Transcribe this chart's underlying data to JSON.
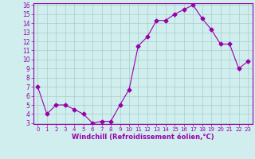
{
  "x": [
    0,
    1,
    2,
    3,
    4,
    5,
    6,
    7,
    8,
    9,
    10,
    11,
    12,
    13,
    14,
    15,
    16,
    17,
    18,
    19,
    20,
    21,
    22,
    23
  ],
  "y": [
    7.0,
    4.0,
    5.0,
    5.0,
    4.5,
    4.0,
    3.0,
    3.2,
    3.2,
    5.0,
    6.7,
    11.5,
    12.5,
    14.3,
    14.3,
    15.0,
    15.5,
    16.0,
    14.5,
    13.3,
    11.7,
    11.7,
    9.0,
    9.8
  ],
  "line_color": "#9900aa",
  "marker": "D",
  "markersize": 2.5,
  "linewidth": 0.8,
  "bg_color": "#d0eeee",
  "grid_color": "#aacccc",
  "xlabel": "Windchill (Refroidissement éolien,°C)",
  "xlabel_color": "#9900aa",
  "tick_color": "#9900aa",
  "ylim": [
    3,
    16
  ],
  "xlim": [
    -0.5,
    23.5
  ],
  "yticks": [
    3,
    4,
    5,
    6,
    7,
    8,
    9,
    10,
    11,
    12,
    13,
    14,
    15,
    16
  ],
  "xticks": [
    0,
    1,
    2,
    3,
    4,
    5,
    6,
    7,
    8,
    9,
    10,
    11,
    12,
    13,
    14,
    15,
    16,
    17,
    18,
    19,
    20,
    21,
    22,
    23
  ]
}
